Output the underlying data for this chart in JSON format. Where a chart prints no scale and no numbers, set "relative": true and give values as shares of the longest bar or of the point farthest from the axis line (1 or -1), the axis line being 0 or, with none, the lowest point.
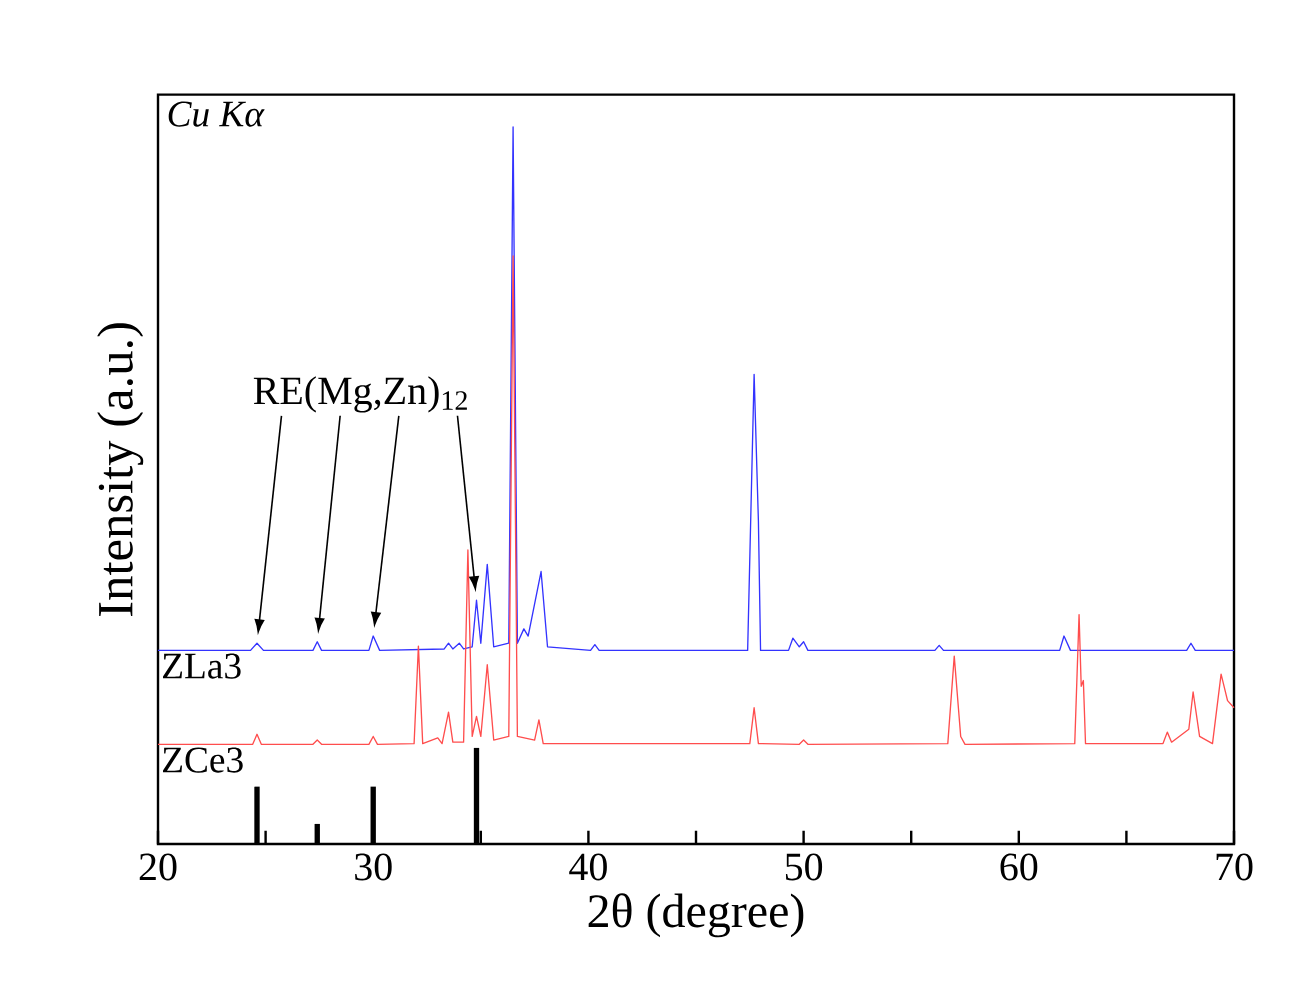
{
  "chart_data": {
    "type": "line",
    "relative": true,
    "xlabel": "2θ (degree)",
    "ylabel": "Intensity (a.u.)",
    "xlim": [
      20,
      70
    ],
    "xticks": [
      20,
      {
        "value": 25,
        "label": null
      },
      30,
      {
        "value": 35,
        "label": null
      },
      40,
      {
        "value": 45,
        "label": null
      },
      50,
      {
        "value": 55,
        "label": null
      },
      60,
      {
        "value": 65,
        "label": null
      },
      70
    ],
    "grid": false,
    "marker": "none",
    "line_style": "solid",
    "annotations": [
      "Cu Kα",
      "RE(Mg,Zn)$_{12}$"
    ],
    "series": [
      {
        "name": "ZLa3",
        "color": "#3333ff",
        "x": [
          20,
          24.3,
          24.6,
          24.9,
          27.2,
          27.4,
          27.6,
          29.8,
          30.0,
          30.3,
          33.3,
          33.5,
          33.7,
          34.0,
          34.2,
          34.6,
          34.8,
          35.0,
          35.3,
          35.6,
          36.3,
          36.5,
          36.7,
          37.0,
          37.2,
          37.8,
          38.1,
          40.1,
          40.3,
          40.5,
          47.4,
          47.7,
          47.9,
          48.0,
          49.3,
          49.5,
          49.8,
          50.0,
          50.2,
          56.1,
          56.3,
          56.5,
          61.9,
          62.1,
          62.4,
          67.8,
          68.0,
          68.2,
          70
        ],
        "values": [
          0.27,
          0.27,
          0.28,
          0.27,
          0.27,
          0.282,
          0.27,
          0.27,
          0.29,
          0.27,
          0.272,
          0.28,
          0.272,
          0.28,
          0.272,
          0.275,
          0.34,
          0.28,
          0.39,
          0.275,
          0.28,
          1.0,
          0.28,
          0.3,
          0.29,
          0.38,
          0.275,
          0.27,
          0.278,
          0.27,
          0.27,
          0.655,
          0.45,
          0.27,
          0.27,
          0.287,
          0.275,
          0.282,
          0.27,
          0.27,
          0.277,
          0.27,
          0.27,
          0.29,
          0.27,
          0.27,
          0.28,
          0.27,
          0.27
        ]
      },
      {
        "name": "ZCe3",
        "color": "#ff4d4d",
        "x": [
          20,
          24.4,
          24.6,
          24.8,
          27.2,
          27.4,
          27.6,
          29.8,
          30.0,
          30.2,
          31.9,
          32.1,
          32.3,
          33.0,
          33.2,
          33.5,
          33.7,
          34.2,
          34.4,
          34.6,
          34.8,
          35.0,
          35.3,
          35.6,
          36.3,
          36.5,
          36.7,
          37.5,
          37.7,
          37.9,
          47.5,
          47.7,
          47.9,
          49.8,
          50.0,
          50.2,
          56.7,
          57.0,
          57.3,
          57.5,
          62.6,
          62.8,
          62.9,
          63.0,
          63.1,
          66.7,
          66.9,
          67.1,
          67.9,
          68.1,
          68.4,
          69.0,
          69.4,
          69.7,
          70
        ],
        "values": [
          0.139,
          0.139,
          0.153,
          0.139,
          0.139,
          0.145,
          0.139,
          0.139,
          0.15,
          0.139,
          0.14,
          0.276,
          0.14,
          0.148,
          0.14,
          0.184,
          0.142,
          0.142,
          0.41,
          0.15,
          0.178,
          0.15,
          0.25,
          0.145,
          0.15,
          0.82,
          0.15,
          0.145,
          0.173,
          0.14,
          0.14,
          0.19,
          0.14,
          0.139,
          0.145,
          0.139,
          0.14,
          0.262,
          0.15,
          0.139,
          0.14,
          0.32,
          0.22,
          0.228,
          0.14,
          0.14,
          0.156,
          0.142,
          0.16,
          0.212,
          0.15,
          0.14,
          0.237,
          0.2,
          0.19
        ]
      },
      {
        "type": "bar",
        "color": "#000000",
        "x": [
          24.6,
          27.4,
          30.0,
          34.8
        ],
        "values": [
          0.08,
          0.028,
          0.08,
          0.134
        ]
      }
    ]
  }
}
